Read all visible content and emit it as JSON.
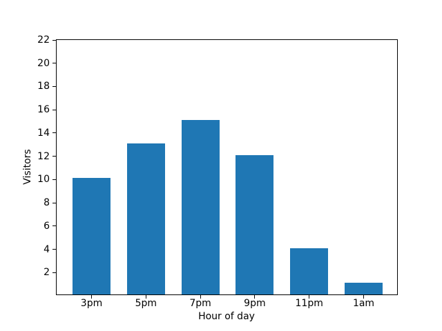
{
  "chart_data": {
    "type": "bar",
    "title": "",
    "categories": [
      "3pm",
      "5pm",
      "7pm",
      "9pm",
      "11pm",
      "1am"
    ],
    "values": [
      10,
      13,
      15,
      12,
      4,
      1
    ],
    "xlabel": "Hour of day",
    "ylabel": "Visitors",
    "ylim": [
      0,
      22
    ],
    "yticks": [
      2,
      4,
      6,
      8,
      10,
      12,
      14,
      16,
      18,
      20,
      22
    ],
    "bar_color": "#1f77b4",
    "axis_color": "#000000",
    "background_color": "#ffffff",
    "grid": false,
    "legend": null
  }
}
